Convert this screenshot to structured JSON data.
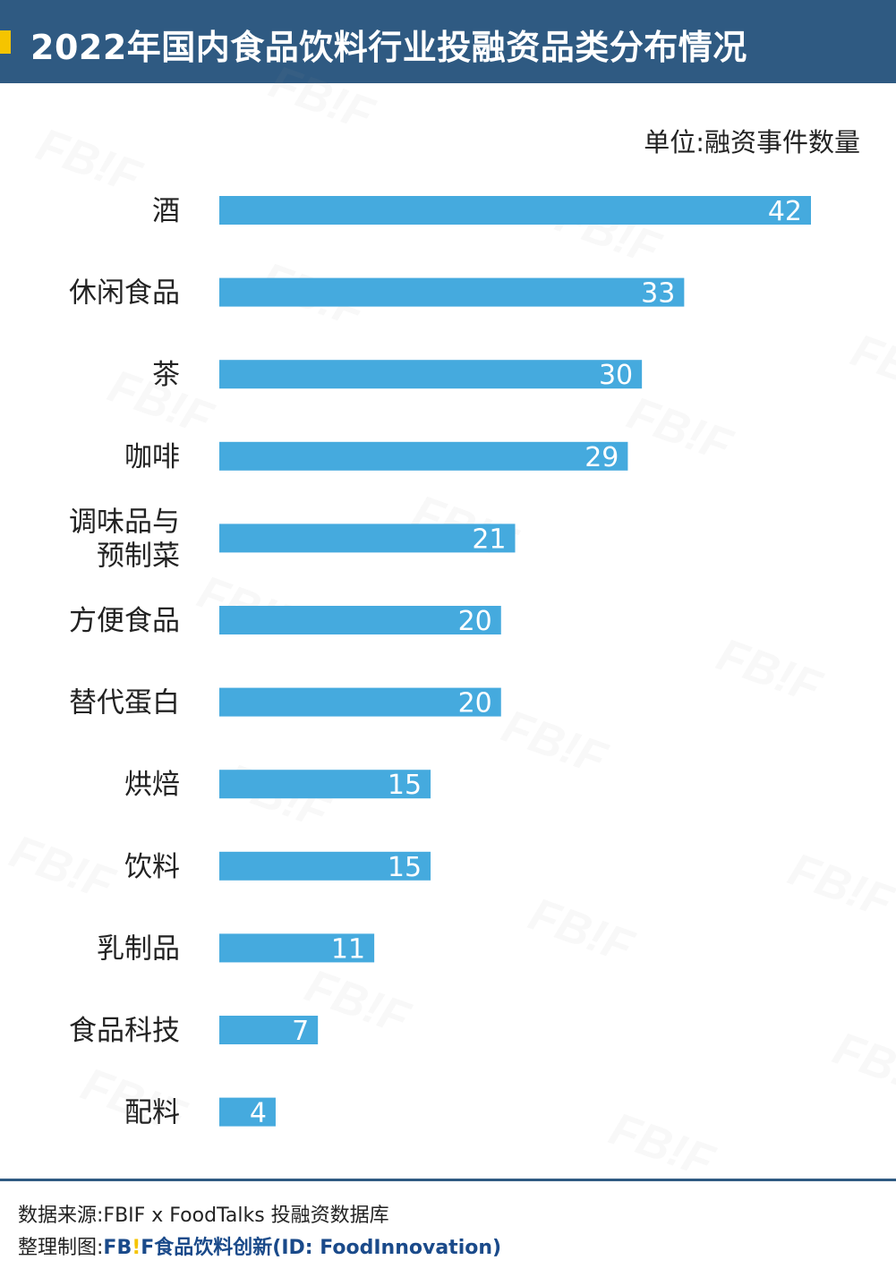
{
  "header": {
    "title": "2022年国内食品饮料行业投融资品类分布情况",
    "accent_color": "#f5c400",
    "background_color": "#2f5a82"
  },
  "unit_label": "单位:融资事件数量",
  "watermark_text": "FB!F",
  "chart_data": {
    "type": "bar",
    "orientation": "horizontal",
    "categories": [
      "酒",
      "休闲食品",
      "茶",
      "咖啡",
      "调味品与\n预制菜",
      "方便食品",
      "替代蛋白",
      "烘焙",
      "饮料",
      "乳制品",
      "食品科技",
      "配料"
    ],
    "values": [
      42,
      33,
      30,
      29,
      21,
      20,
      20,
      15,
      15,
      11,
      7,
      4
    ],
    "bar_color": "#45aade",
    "value_label_color": "#ffffff",
    "xlim": [
      0,
      42
    ],
    "grid": false,
    "legend": "none"
  },
  "footer": {
    "source": "数据来源:FBIF x FoodTalks 投融资数据库",
    "credit_prefix": "整理制图:",
    "credit_logo": "FB!F",
    "credit_brand": "食品饮料创新(ID: FoodInnovation)"
  }
}
